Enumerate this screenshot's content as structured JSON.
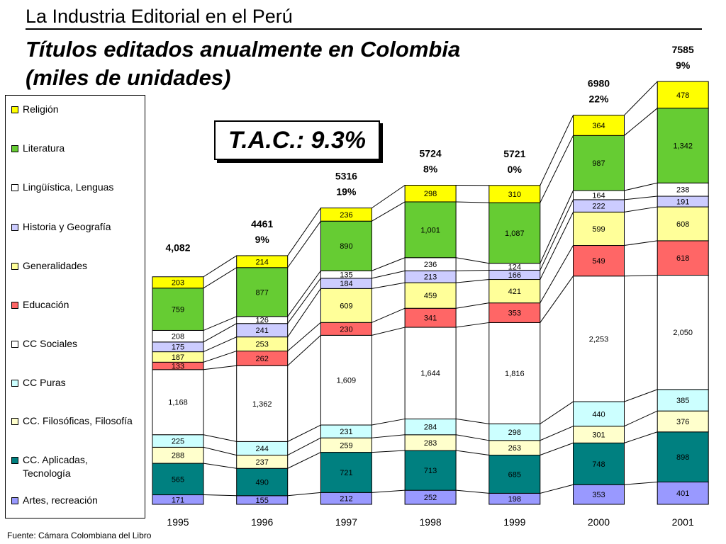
{
  "header": {
    "title": "La Industria Editorial en el Perú"
  },
  "slide": {
    "title_line1": "Títulos editados anualmente en Colombia",
    "title_line2": "(miles de unidades)",
    "tac": "T.A.C.: 9.3%",
    "source": "Fuente: Cámara Colombiana del Libro"
  },
  "chart_data": {
    "type": "bar",
    "stacked": true,
    "categories": [
      "1995",
      "1996",
      "1997",
      "1998",
      "1999",
      "2000",
      "2001"
    ],
    "series": [
      {
        "name": "Artes, recreación",
        "color": "#9999ff",
        "values": [
          171,
          155,
          212,
          252,
          198,
          353,
          401
        ]
      },
      {
        "name": "CC. Aplicadas, Tecnología",
        "color": "#008080",
        "values": [
          565,
          490,
          721,
          713,
          685,
          748,
          898
        ]
      },
      {
        "name": "CC. Filosóficas, Filosofía",
        "color": "#ffffcc",
        "values": [
          288,
          237,
          259,
          283,
          263,
          301,
          376
        ]
      },
      {
        "name": "CC Puras",
        "color": "#ccffff",
        "values": [
          225,
          244,
          231,
          284,
          298,
          440,
          385
        ]
      },
      {
        "name": "CC Sociales",
        "color": "#ffffff",
        "values": [
          1168,
          1362,
          1609,
          1644,
          1816,
          2253,
          2050
        ]
      },
      {
        "name": "Educación",
        "color": "#ff6666",
        "values": [
          133,
          262,
          230,
          341,
          353,
          549,
          618
        ]
      },
      {
        "name": "Generalidades",
        "color": "#ffff99",
        "values": [
          187,
          253,
          609,
          459,
          421,
          599,
          608
        ]
      },
      {
        "name": "Historia y Geografía",
        "color": "#ccccff",
        "values": [
          175,
          241,
          184,
          213,
          166,
          222,
          191
        ]
      },
      {
        "name": "Lingüística, Lenguas",
        "color": "#ffffff",
        "values": [
          208,
          126,
          135,
          236,
          124,
          164,
          238
        ]
      },
      {
        "name": "Literatura",
        "color": "#66cc33",
        "values": [
          759,
          877,
          890,
          1001,
          1087,
          987,
          1342
        ]
      },
      {
        "name": "Religión",
        "color": "#ffff00",
        "values": [
          203,
          214,
          236,
          298,
          310,
          364,
          478
        ]
      }
    ],
    "value_labels": [
      [
        "171",
        "565",
        "288",
        "225",
        "1,168",
        "133",
        "187",
        "175",
        "208",
        "759",
        "203"
      ],
      [
        "155",
        "490",
        "237",
        "244",
        "1,362",
        "262",
        "253",
        "241",
        "126",
        "877",
        "214"
      ],
      [
        "212",
        "721",
        "259",
        "231",
        "1,609",
        "230",
        "609",
        "184",
        "135",
        "890",
        "236"
      ],
      [
        "252",
        "713",
        "283",
        "284",
        "1,644",
        "341",
        "459",
        "213",
        "236",
        "1,001",
        "298"
      ],
      [
        "198",
        "685",
        "263",
        "298",
        "1,816",
        "353",
        "421",
        "166",
        "124",
        "1,087",
        "310"
      ],
      [
        "353",
        "748",
        "301",
        "440",
        "2,253",
        "549",
        "599",
        "222",
        "164",
        "987",
        "364"
      ],
      [
        "401",
        "898",
        "376",
        "385",
        "2,050",
        "618",
        "608",
        "191",
        "238",
        "1,342",
        "478"
      ]
    ],
    "totals": [
      "4,082",
      "4461",
      "5316",
      "5724",
      "5721",
      "6980",
      "7585"
    ],
    "growth": [
      "",
      "9%",
      "19%",
      "8%",
      "0%",
      "22%",
      "9%"
    ],
    "legend_order": [
      "Religión",
      "Literatura",
      "Lingüística, Lenguas",
      "Historia y Geografía",
      "Generalidades",
      "Educación",
      "CC Sociales",
      "CC Puras",
      "CC. Filosóficas, Filosofía",
      "CC. Aplicadas, Tecnología",
      "Artes, recreación"
    ],
    "legend_placement": "left",
    "grid": false
  }
}
